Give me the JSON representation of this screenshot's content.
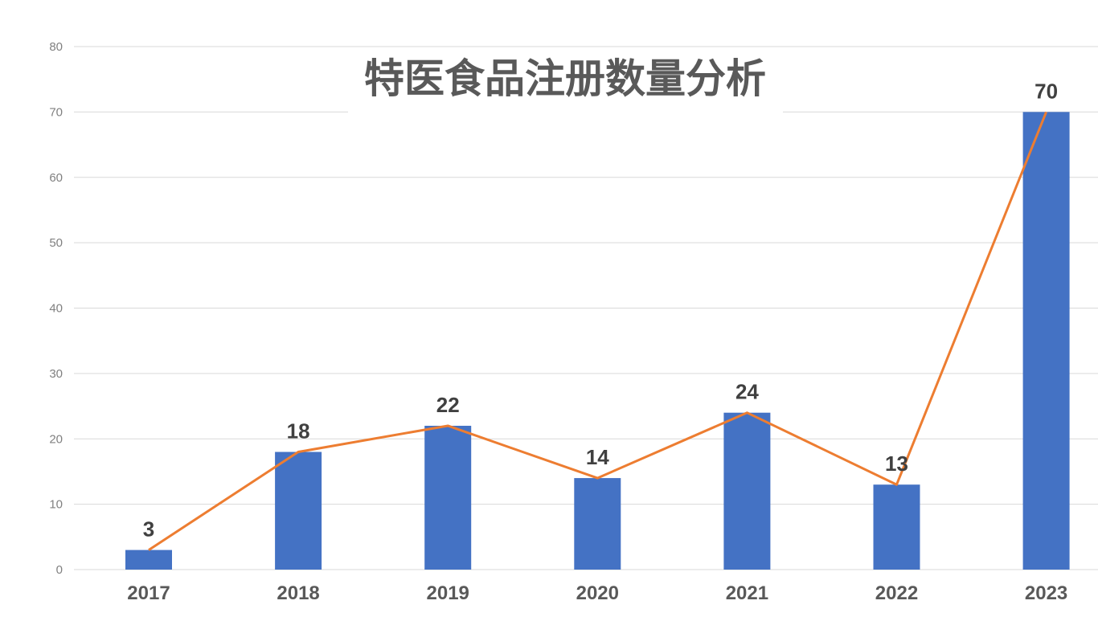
{
  "chart_data": {
    "type": "bar",
    "title": "特医食品注册数量分析",
    "categories": [
      "2017",
      "2018",
      "2019",
      "2020",
      "2021",
      "2022",
      "2023"
    ],
    "series": [
      {
        "type": "bar",
        "values": [
          3,
          18,
          22,
          14,
          24,
          13,
          70
        ],
        "color": "#4472c4"
      },
      {
        "type": "line",
        "values": [
          3,
          18,
          22,
          14,
          24,
          13,
          70
        ],
        "color": "#ed7d31"
      }
    ],
    "data_labels": [
      "3",
      "18",
      "22",
      "14",
      "24",
      "13",
      "70"
    ],
    "ylim": [
      0,
      80
    ],
    "yticks": [
      0,
      10,
      20,
      30,
      40,
      50,
      60,
      70,
      80
    ],
    "grid": true,
    "legend": "none"
  }
}
